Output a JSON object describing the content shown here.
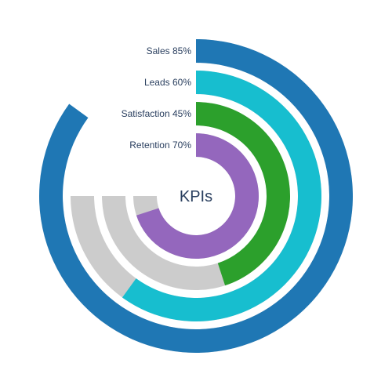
{
  "chart_data": {
    "type": "radial-bar",
    "title": "",
    "center_label": "KPIs",
    "max_value": 100,
    "unit": "%",
    "track_extent_percent": 75,
    "track_color": "#cccccc",
    "series": [
      {
        "name": "Sales",
        "value": 85,
        "label": "Sales 85%",
        "color": "#1f77b4"
      },
      {
        "name": "Leads",
        "value": 60,
        "label": "Leads 60%",
        "color": "#17becf"
      },
      {
        "name": "Satisfaction",
        "value": 45,
        "label": "Satisfaction 45%",
        "color": "#2ca02c"
      },
      {
        "name": "Retention",
        "value": 70,
        "label": "Retention 70%",
        "color": "#9467bd"
      }
    ]
  }
}
